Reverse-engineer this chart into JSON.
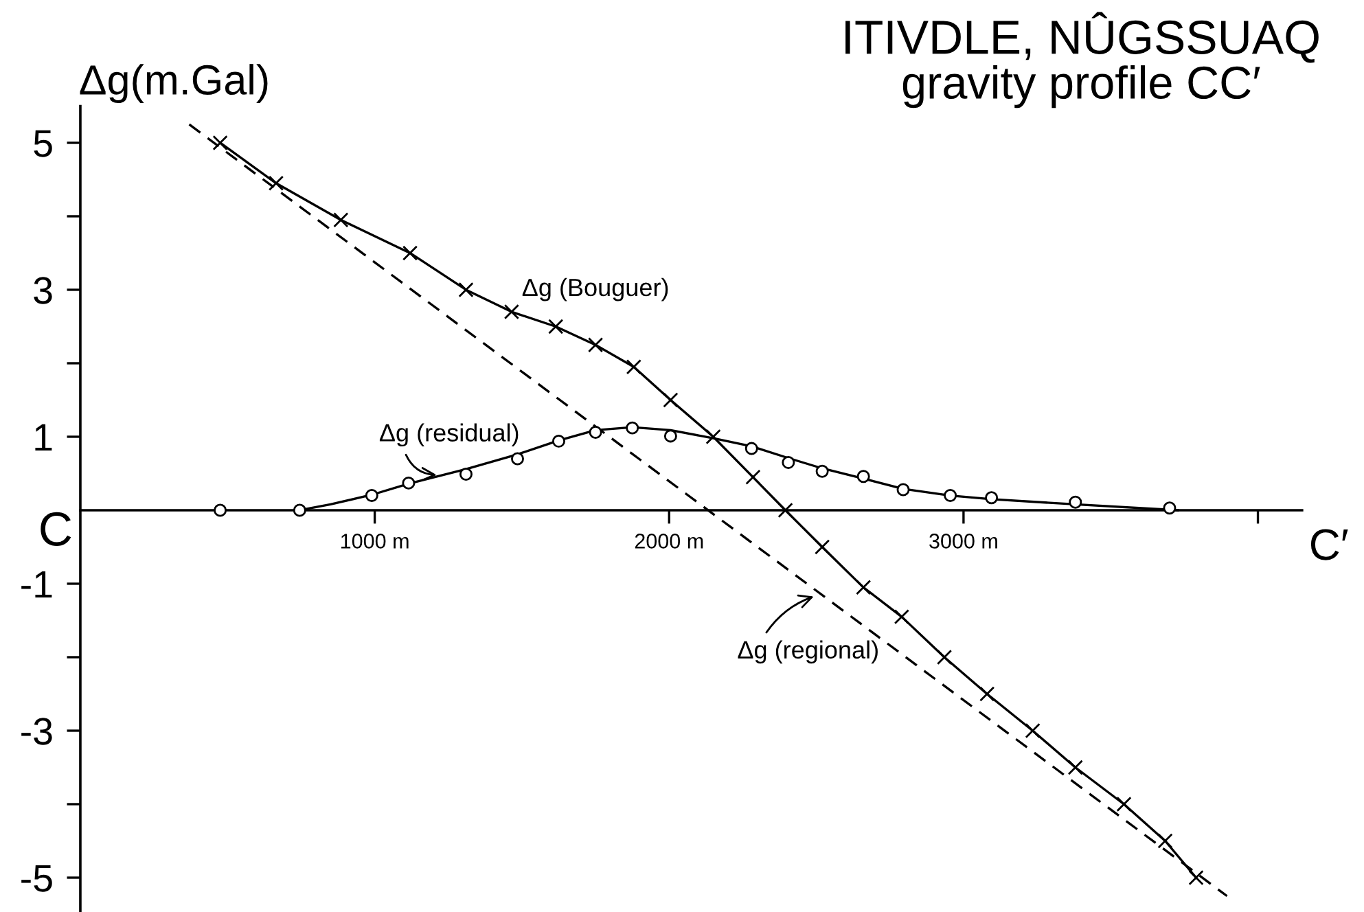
{
  "chart_data": {
    "type": "line",
    "title": "ITIVDLE, NÛGSSUAQ",
    "subtitle": "gravity profile CC′",
    "ylabel": "Δg(m.Gal)",
    "xlim": [
      0,
      4150
    ],
    "xticks": [
      {
        "value": 1000,
        "label": "1000 m"
      },
      {
        "value": 2000,
        "label": "2000 m"
      },
      {
        "value": 3000,
        "label": "3000 m"
      },
      {
        "value": 4000,
        "label": null
      }
    ],
    "ylim": [
      -5.45,
      5.5
    ],
    "yticks": [
      5,
      {
        "value": 4,
        "label": null
      },
      3,
      {
        "value": 2,
        "label": null
      },
      1,
      -1,
      {
        "value": -2,
        "label": null
      },
      -3,
      {
        "value": -4,
        "label": null
      },
      -5
    ],
    "series": [
      {
        "color": "#000000",
        "marker": "cross",
        "line_style": "solid",
        "x": [
          475,
          665,
          885,
          1120,
          1310,
          1465,
          1615,
          1750,
          1880,
          2005,
          2150,
          2285,
          2395,
          2520,
          2660,
          2790,
          2935,
          3080,
          3235,
          3380,
          3545,
          3685,
          3790
        ],
        "values": [
          5.0,
          4.45,
          3.95,
          3.5,
          3.0,
          2.7,
          2.5,
          2.25,
          1.95,
          1.5,
          1.0,
          0.45,
          0.0,
          -0.5,
          -1.05,
          -1.45,
          -2.0,
          -2.5,
          -3.0,
          -3.5,
          -4.0,
          -4.5,
          -5.0
        ]
      },
      {
        "color": "#000000",
        "marker": "none",
        "line_style": "dashed",
        "x": [
          370,
          3895
        ],
        "values": [
          5.25,
          -5.25
        ]
      },
      {
        "color": "#000000",
        "marker": "none",
        "line_style": "solid",
        "x": [
          745,
          850,
          990,
          1115,
          1310,
          1485,
          1625,
          1750,
          1875,
          2005,
          2150,
          2280,
          2405,
          2520,
          2660,
          2795,
          2955,
          3095,
          3380,
          3730
        ],
        "values": [
          0.0,
          0.08,
          0.21,
          0.36,
          0.56,
          0.76,
          0.95,
          1.09,
          1.13,
          1.09,
          0.98,
          0.87,
          0.71,
          0.57,
          0.43,
          0.29,
          0.2,
          0.15,
          0.08,
          0.0
        ]
      },
      {
        "type": "scatter",
        "color": "#000000",
        "marker": "circle",
        "x": [
          475,
          745,
          990,
          1115,
          1310,
          1485,
          1625,
          1750,
          1875,
          2005,
          2280,
          2405,
          2520,
          2660,
          2795,
          2955,
          3095,
          3380,
          3700
        ],
        "values": [
          0.0,
          0.0,
          0.2,
          0.37,
          0.49,
          0.7,
          0.94,
          1.06,
          1.12,
          1.01,
          0.84,
          0.65,
          0.53,
          0.46,
          0.28,
          0.2,
          0.17,
          0.11,
          0.03
        ]
      }
    ],
    "annotations": [
      {
        "text": "Δg (Bouguer)",
        "x": 1750,
        "y": 2.25
      },
      {
        "text": "Δg (residual)",
        "x": 1230,
        "y": 0.48
      },
      {
        "text": "Δg (regional)",
        "x": 2510,
        "y": -1.15
      },
      "C",
      "C′"
    ]
  }
}
